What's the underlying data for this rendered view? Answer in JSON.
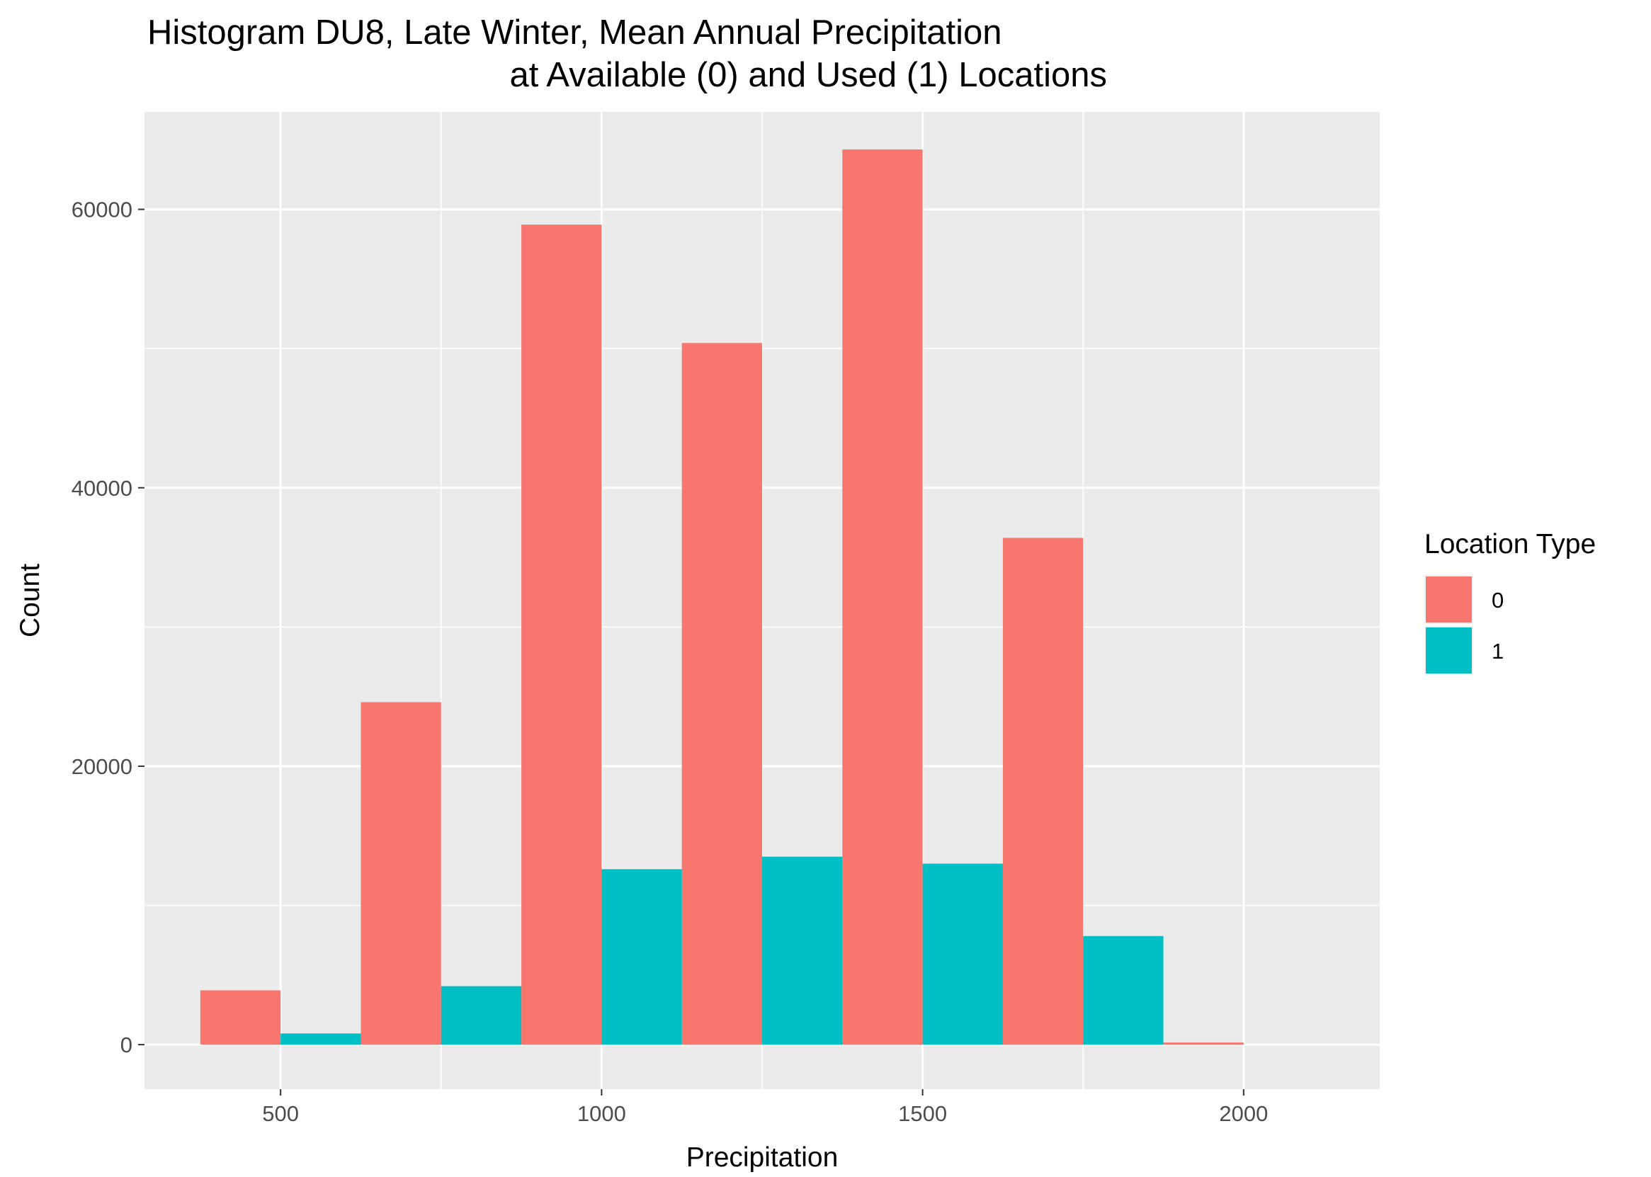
{
  "chart_data": {
    "type": "bar",
    "title_line1": "Histogram DU8, Late Winter, Mean Annual Precipitation",
    "title_line2": "at Available (0) and Used (1) Locations",
    "xlabel": "Precipitation",
    "ylabel": "Count",
    "bin_width": 250,
    "xlim": [
      288,
      2212
    ],
    "ylim": [
      -3200,
      67000
    ],
    "x_ticks": [
      500,
      1000,
      1500,
      2000
    ],
    "y_ticks": [
      0,
      20000,
      40000,
      60000
    ],
    "x_tick_labels": [
      "500",
      "1000",
      "1500",
      "2000"
    ],
    "y_tick_labels": [
      "0",
      "20000",
      "40000",
      "60000"
    ],
    "bin_centers": [
      500,
      750,
      1000,
      1250,
      1500,
      1750,
      2000
    ],
    "grid": true,
    "legend": {
      "title": "Location Type",
      "position": "right"
    },
    "series": [
      {
        "name": "0",
        "color": "#F8766D",
        "values": [
          3900,
          24600,
          58900,
          50400,
          64300,
          36400,
          150
        ]
      },
      {
        "name": "1",
        "color": "#00BFC4",
        "values": [
          800,
          4200,
          12600,
          13500,
          13000,
          7800,
          0
        ]
      }
    ]
  }
}
